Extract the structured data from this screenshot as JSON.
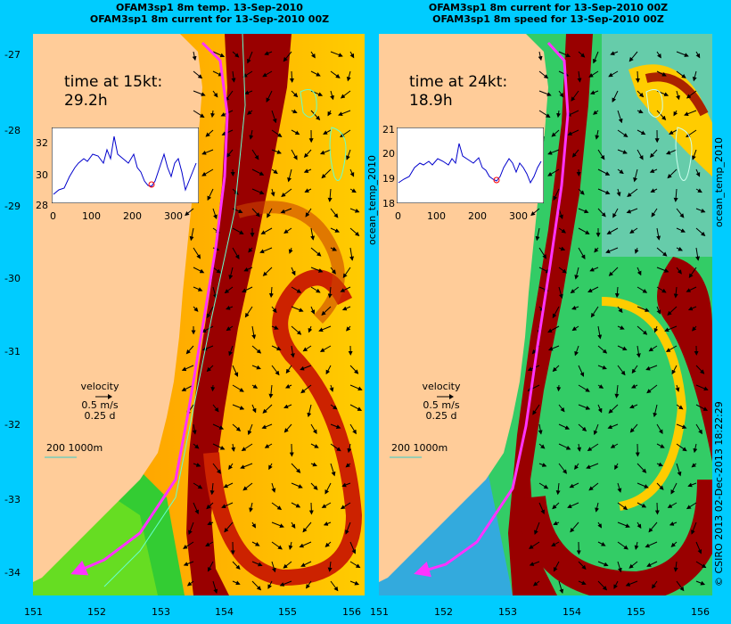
{
  "left": {
    "title_line1": "OFAM3sp1 8m temp. 13-Sep-2010",
    "title_line2": "OFAM3sp1 8m current for 13-Sep-2010 00Z",
    "time_label": "time at 15kt:",
    "time_value": "29.2h",
    "inset_y_ticks": [
      "32",
      "30",
      "28"
    ],
    "inset_x_ticks": [
      "0",
      "100",
      "200",
      "300"
    ],
    "side_label": "ocean_temp_2010",
    "velocity_label": "velocity",
    "velocity_ms": "0.5 m/s",
    "velocity_d": "0.25 d",
    "scale_label": "200  1000m"
  },
  "right": {
    "title_line1": "OFAM3sp1 8m current for 13-Sep-2010 00Z",
    "title_line2": "OFAM3sp1 8m speed for 13-Sep-2010 00Z",
    "time_label": "time at 24kt:",
    "time_value": "18.9h",
    "inset_y_ticks": [
      "21",
      "20",
      "19",
      "18"
    ],
    "inset_x_ticks": [
      "0",
      "100",
      "200",
      "300"
    ],
    "side_label": "ocean_temp_2010",
    "velocity_label": "velocity",
    "velocity_ms": "0.5 m/s",
    "velocity_d": "0.25 d",
    "scale_label": "200  1000m"
  },
  "y_axis_ticks": [
    "-27",
    "-28",
    "-29",
    "-30",
    "-31",
    "-32",
    "-33",
    "-34"
  ],
  "x_axis_ticks": [
    "151",
    "152",
    "153",
    "154",
    "155",
    "156"
  ],
  "credit": "© CSIRO 2013   02-Dec-2013 18:22:29",
  "colors": {
    "background": "#00ccff",
    "land": "#ffcc99",
    "hot": "#990000",
    "track": "#ff33ff"
  }
}
